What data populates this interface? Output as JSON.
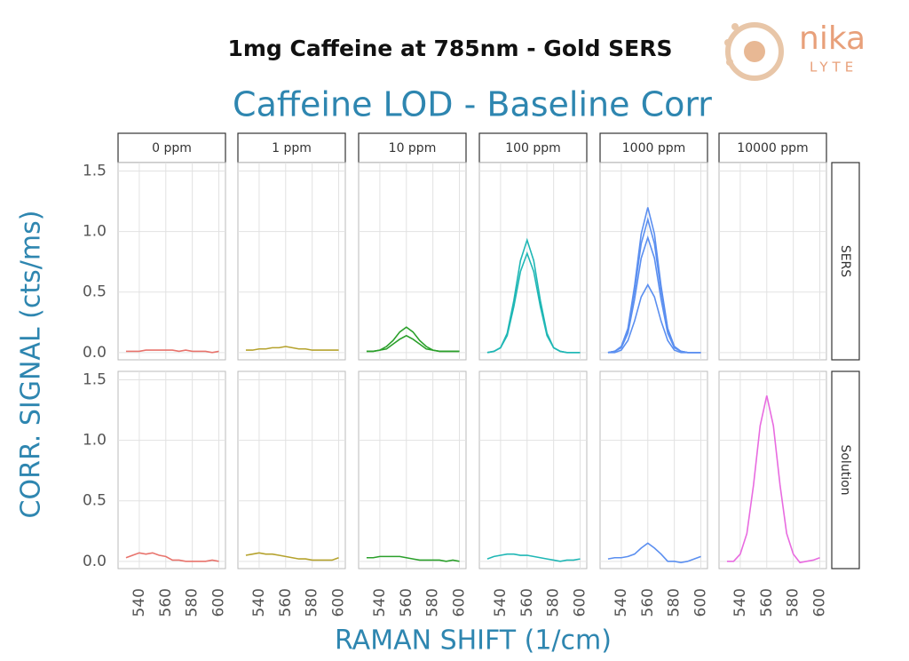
{
  "header": {
    "title": "1mg Caffeine at 785nm - Gold SERS",
    "logo": [
      "nika",
      "LYTE"
    ]
  },
  "chart_data": {
    "type": "line",
    "title": "Caffeine LOD - Baseline Corr",
    "y_label": "CORR. SIGNAL (cts/ms)",
    "x_label": "RAMAN SHIFT (1/cm)",
    "columns": [
      "0 ppm",
      "1 ppm",
      "10 ppm",
      "100 ppm",
      "1000 ppm",
      "10000 ppm"
    ],
    "x": [
      530,
      535,
      540,
      545,
      550,
      555,
      560,
      565,
      570,
      575,
      580,
      585,
      590,
      595,
      600
    ],
    "xlim": [
      524,
      605
    ],
    "xticks": [
      540,
      560,
      580,
      600
    ],
    "ylim": [
      -0.06,
      1.57
    ],
    "yticks": [
      {
        "value": 0,
        "label": "0.0"
      },
      0.5,
      {
        "value": 1,
        "label": "1.0"
      },
      1.5
    ],
    "grid": true,
    "rows": [
      {
        "label": "SERS",
        "panels": [
          {
            "series": [
              {
                "color": "#e8736c",
                "values": [
                  0.01,
                  0.01,
                  0.01,
                  0.02,
                  0.02,
                  0.02,
                  0.02,
                  0.02,
                  0.01,
                  0.02,
                  0.01,
                  0.01,
                  0.01,
                  0.0,
                  0.01
                ]
              }
            ]
          },
          {
            "series": [
              {
                "color": "#b5a22d",
                "values": [
                  0.02,
                  0.02,
                  0.03,
                  0.03,
                  0.04,
                  0.04,
                  0.05,
                  0.04,
                  0.03,
                  0.03,
                  0.02,
                  0.02,
                  0.02,
                  0.02,
                  0.02
                ]
              }
            ]
          },
          {
            "series": [
              {
                "color": "#2ba02b",
                "values": [
                  0.01,
                  0.01,
                  0.02,
                  0.05,
                  0.1,
                  0.17,
                  0.21,
                  0.17,
                  0.1,
                  0.05,
                  0.02,
                  0.01,
                  0.01,
                  0.01,
                  0.01
                ]
              },
              {
                "color": "#2ba02b",
                "values": [
                  0.01,
                  0.01,
                  0.02,
                  0.03,
                  0.07,
                  0.11,
                  0.14,
                  0.11,
                  0.07,
                  0.03,
                  0.02,
                  0.01,
                  0.01,
                  0.01,
                  0.01
                ]
              }
            ]
          },
          {
            "series": [
              {
                "color": "#1fb7b5",
                "values": [
                  0,
                  0.01,
                  0.04,
                  0.16,
                  0.43,
                  0.76,
                  0.93,
                  0.76,
                  0.43,
                  0.16,
                  0.04,
                  0.01,
                  0,
                  0,
                  0
                ]
              },
              {
                "color": "#1fb7b5",
                "values": [
                  0,
                  0.01,
                  0.04,
                  0.14,
                  0.38,
                  0.67,
                  0.82,
                  0.67,
                  0.38,
                  0.14,
                  0.04,
                  0.01,
                  0,
                  0,
                  0
                ]
              }
            ]
          },
          {
            "series": [
              {
                "color": "#5b8ff0",
                "values": [
                  0,
                  0.01,
                  0.05,
                  0.2,
                  0.55,
                  0.98,
                  1.2,
                  0.98,
                  0.55,
                  0.2,
                  0.05,
                  0.01,
                  0,
                  0,
                  0
                ]
              },
              {
                "color": "#5b8ff0",
                "values": [
                  0,
                  0.01,
                  0.05,
                  0.19,
                  0.51,
                  0.9,
                  1.1,
                  0.9,
                  0.51,
                  0.19,
                  0.05,
                  0.01,
                  0,
                  0,
                  0
                ]
              },
              {
                "color": "#5b8ff0",
                "values": [
                  0,
                  0.01,
                  0.04,
                  0.16,
                  0.44,
                  0.78,
                  0.95,
                  0.78,
                  0.44,
                  0.16,
                  0.04,
                  0.01,
                  0,
                  0,
                  0
                ]
              },
              {
                "color": "#5b8ff0",
                "values": [
                  0,
                  0,
                  0.02,
                  0.1,
                  0.26,
                  0.46,
                  0.56,
                  0.46,
                  0.26,
                  0.1,
                  0.02,
                  0,
                  0,
                  0,
                  0
                ]
              }
            ]
          },
          {
            "series": []
          }
        ]
      },
      {
        "label": "Solution",
        "panels": [
          {
            "series": [
              {
                "color": "#e8736c",
                "values": [
                  0.03,
                  0.05,
                  0.07,
                  0.06,
                  0.07,
                  0.05,
                  0.04,
                  0.01,
                  0.01,
                  0.0,
                  0.0,
                  0.0,
                  0.0,
                  0.01,
                  0.0
                ]
              }
            ]
          },
          {
            "series": [
              {
                "color": "#b5a22d",
                "values": [
                  0.05,
                  0.06,
                  0.07,
                  0.06,
                  0.06,
                  0.05,
                  0.04,
                  0.03,
                  0.02,
                  0.02,
                  0.01,
                  0.01,
                  0.01,
                  0.01,
                  0.03
                ]
              }
            ]
          },
          {
            "series": [
              {
                "color": "#2ba02b",
                "values": [
                  0.03,
                  0.03,
                  0.04,
                  0.04,
                  0.04,
                  0.04,
                  0.03,
                  0.02,
                  0.01,
                  0.01,
                  0.01,
                  0.01,
                  0.0,
                  0.01,
                  0.0
                ]
              }
            ]
          },
          {
            "series": [
              {
                "color": "#1fb7b5",
                "values": [
                  0.02,
                  0.04,
                  0.05,
                  0.06,
                  0.06,
                  0.05,
                  0.05,
                  0.04,
                  0.03,
                  0.02,
                  0.01,
                  0.0,
                  0.01,
                  0.01,
                  0.02
                ]
              }
            ]
          },
          {
            "series": [
              {
                "color": "#5b8ff0",
                "values": [
                  0.02,
                  0.03,
                  0.03,
                  0.04,
                  0.06,
                  0.11,
                  0.15,
                  0.11,
                  0.06,
                  0.0,
                  0.0,
                  -0.01,
                  0.0,
                  0.02,
                  0.04
                ]
              }
            ]
          },
          {
            "series": [
              {
                "color": "#e86be0",
                "values": [
                  0.0,
                  0.0,
                  0.06,
                  0.23,
                  0.63,
                  1.12,
                  1.37,
                  1.12,
                  0.63,
                  0.23,
                  0.06,
                  -0.01,
                  0,
                  0.01,
                  0.03
                ]
              }
            ]
          }
        ]
      }
    ]
  }
}
